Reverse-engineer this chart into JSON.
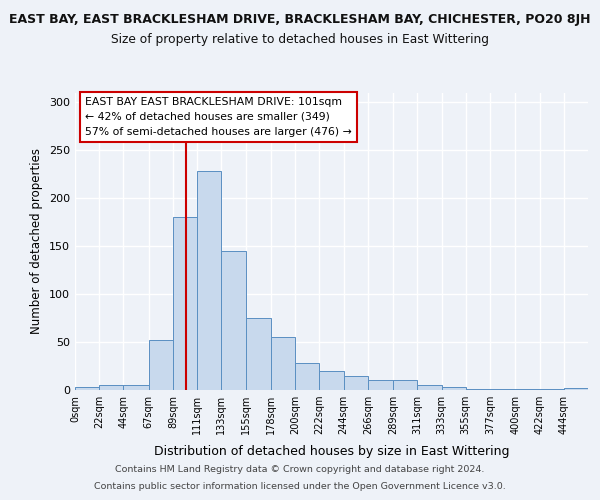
{
  "title": "EAST BAY, EAST BRACKLESHAM DRIVE, BRACKLESHAM BAY, CHICHESTER, PO20 8JH",
  "subtitle": "Size of property relative to detached houses in East Wittering",
  "xlabel": "Distribution of detached houses by size in East Wittering",
  "ylabel": "Number of detached properties",
  "bin_labels": [
    "0sqm",
    "22sqm",
    "44sqm",
    "67sqm",
    "89sqm",
    "111sqm",
    "133sqm",
    "155sqm",
    "178sqm",
    "200sqm",
    "222sqm",
    "244sqm",
    "266sqm",
    "289sqm",
    "311sqm",
    "333sqm",
    "355sqm",
    "377sqm",
    "400sqm",
    "422sqm",
    "444sqm"
  ],
  "bar_heights": [
    3,
    5,
    5,
    52,
    180,
    228,
    145,
    75,
    55,
    28,
    20,
    15,
    10,
    10,
    5,
    3,
    1,
    1,
    1,
    1,
    2
  ],
  "bar_color": "#c8d9ed",
  "bar_edge_color": "#5a8fc2",
  "red_line_x": 101,
  "bin_edges": [
    0,
    22,
    44,
    67,
    89,
    111,
    133,
    155,
    178,
    200,
    222,
    244,
    266,
    289,
    311,
    333,
    355,
    377,
    400,
    422,
    444,
    466
  ],
  "annotation_text": "EAST BAY EAST BRACKLESHAM DRIVE: 101sqm\n← 42% of detached houses are smaller (349)\n57% of semi-detached houses are larger (476) →",
  "annotation_box_color": "white",
  "annotation_box_edge": "#cc0000",
  "ylim": [
    0,
    310
  ],
  "yticks": [
    0,
    50,
    100,
    150,
    200,
    250,
    300
  ],
  "footer_line1": "Contains HM Land Registry data © Crown copyright and database right 2024.",
  "footer_line2": "Contains public sector information licensed under the Open Government Licence v3.0.",
  "background_color": "#eef2f8"
}
